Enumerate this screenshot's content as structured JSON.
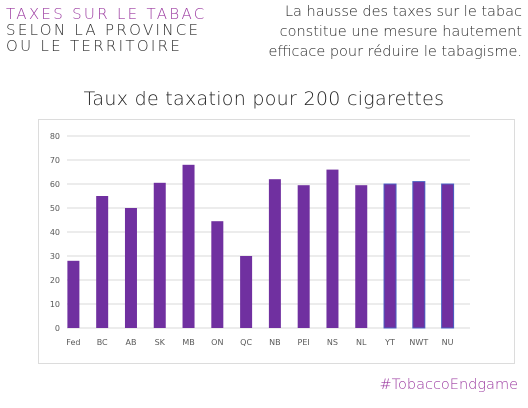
{
  "header": {
    "left_lines": [
      "TAXES SUR LE TABAC",
      "SELON LA PROVINCE",
      "OU LE TERRITOIRE"
    ],
    "right_lines": [
      "La hausse des taxes sur le tabac",
      "constitue une mesure hautement",
      "efficace pour réduire le tabagisme."
    ]
  },
  "footer": {
    "hashtag": "#TobaccoEndgame"
  },
  "colors": {
    "bar": "#7030a0",
    "bar_outline": "#4a5fc1",
    "accent": "#9b3aa0",
    "grid": "#d9d9d9"
  },
  "chart_data": {
    "type": "bar",
    "title": "Taux de taxation pour 200 cigarettes",
    "xlabel": "",
    "ylabel": "",
    "ylim": [
      0,
      80
    ],
    "yticks": [
      0,
      10,
      20,
      30,
      40,
      50,
      60,
      70,
      80
    ],
    "grid": true,
    "categories": [
      "Fed",
      "BC",
      "AB",
      "SK",
      "MB",
      "ON",
      "QC",
      "NB",
      "PEI",
      "NS",
      "NL",
      "YT",
      "NWT",
      "NU"
    ],
    "values": [
      28,
      55,
      50,
      60.5,
      68,
      44.5,
      30,
      62,
      59.5,
      66,
      59.5,
      60,
      61,
      60
    ]
  }
}
